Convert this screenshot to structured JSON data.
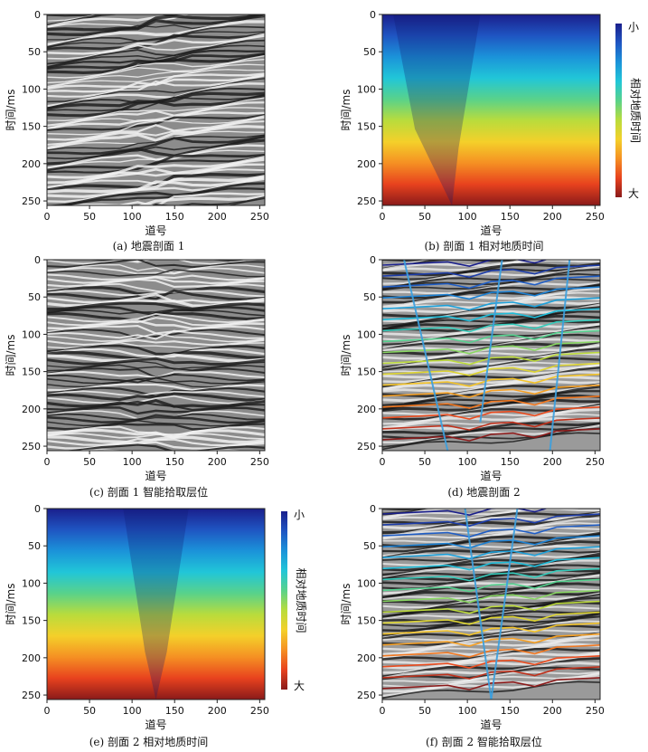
{
  "figure": {
    "panels": [
      {
        "id": "a",
        "kind": "seismic",
        "caption": "(a) 地震剖面 1",
        "xlabel": "道号",
        "ylabel": "时间/ms",
        "seed": 3,
        "fault": "right"
      },
      {
        "id": "b",
        "kind": "relgeotime",
        "caption": "(b) 剖面 1 相对地质时间",
        "xlabel": "道号",
        "ylabel": "时间/ms",
        "shape": "wedge1"
      },
      {
        "id": "c",
        "kind": "seismic",
        "caption": "(c) 剖面 1 智能拾取层位",
        "xlabel": "道号",
        "ylabel": "时间/ms",
        "seed": 7,
        "fault": "flat"
      },
      {
        "id": "d",
        "kind": "horizons",
        "caption": "(d) 地震剖面 2",
        "xlabel": "道号",
        "ylabel": "时间/ms",
        "seed": 11,
        "shape": "wedge1"
      },
      {
        "id": "e",
        "kind": "relgeotime",
        "caption": "(e) 剖面 2 相对地质时间",
        "xlabel": "道号",
        "ylabel": "时间/ms",
        "shape": "funnel"
      },
      {
        "id": "f",
        "kind": "horizons",
        "caption": "(f) 剖面 2 智能拾取层位",
        "xlabel": "道号",
        "ylabel": "时间/ms",
        "seed": 19,
        "shape": "funnel"
      }
    ],
    "colorbar": {
      "label": "相对地质时间",
      "top": "小",
      "bottom": "大"
    }
  },
  "chart_data": [
    {
      "type": "heatmap",
      "panel": "a",
      "xlabel": "道号",
      "ylabel": "时间/ms",
      "xlim": [
        0,
        256
      ],
      "ylim": [
        256,
        0
      ],
      "xticks": [
        0,
        50,
        100,
        150,
        200,
        250
      ],
      "yticks": [
        0,
        50,
        100,
        150,
        200,
        250
      ]
    },
    {
      "type": "heatmap",
      "panel": "b",
      "xlabel": "道号",
      "ylabel": "时间/ms",
      "xlim": [
        0,
        256
      ],
      "ylim": [
        256,
        0
      ],
      "xticks": [
        0,
        50,
        100,
        150,
        200,
        250
      ],
      "yticks": [
        0,
        50,
        100,
        150,
        200,
        250
      ],
      "colorbar": {
        "label": "相对地质时间",
        "top": "小",
        "bottom": "大"
      }
    },
    {
      "type": "heatmap",
      "panel": "c",
      "xlabel": "道号",
      "ylabel": "时间/ms",
      "xlim": [
        0,
        256
      ],
      "ylim": [
        256,
        0
      ],
      "xticks": [
        0,
        50,
        100,
        150,
        200,
        250
      ],
      "yticks": [
        0,
        50,
        100,
        150,
        200,
        250
      ]
    },
    {
      "type": "heatmap",
      "panel": "d",
      "xlabel": "道号",
      "ylabel": "时间/ms",
      "xlim": [
        0,
        256
      ],
      "ylim": [
        256,
        0
      ],
      "xticks": [
        0,
        50,
        100,
        150,
        200,
        250
      ],
      "yticks": [
        0,
        50,
        100,
        150,
        200,
        250
      ]
    },
    {
      "type": "heatmap",
      "panel": "e",
      "xlabel": "道号",
      "ylabel": "时间/ms",
      "xlim": [
        0,
        256
      ],
      "ylim": [
        256,
        0
      ],
      "xticks": [
        0,
        50,
        100,
        150,
        200,
        250
      ],
      "yticks": [
        0,
        50,
        100,
        150,
        200,
        250
      ],
      "colorbar": {
        "label": "相对地质时间",
        "top": "小",
        "bottom": "大"
      }
    },
    {
      "type": "heatmap",
      "panel": "f",
      "xlabel": "道号",
      "ylabel": "时间/ms",
      "xlim": [
        0,
        256
      ],
      "ylim": [
        256,
        0
      ],
      "xticks": [
        0,
        50,
        100,
        150,
        200,
        250
      ],
      "yticks": [
        0,
        50,
        100,
        150,
        200,
        250
      ]
    }
  ]
}
